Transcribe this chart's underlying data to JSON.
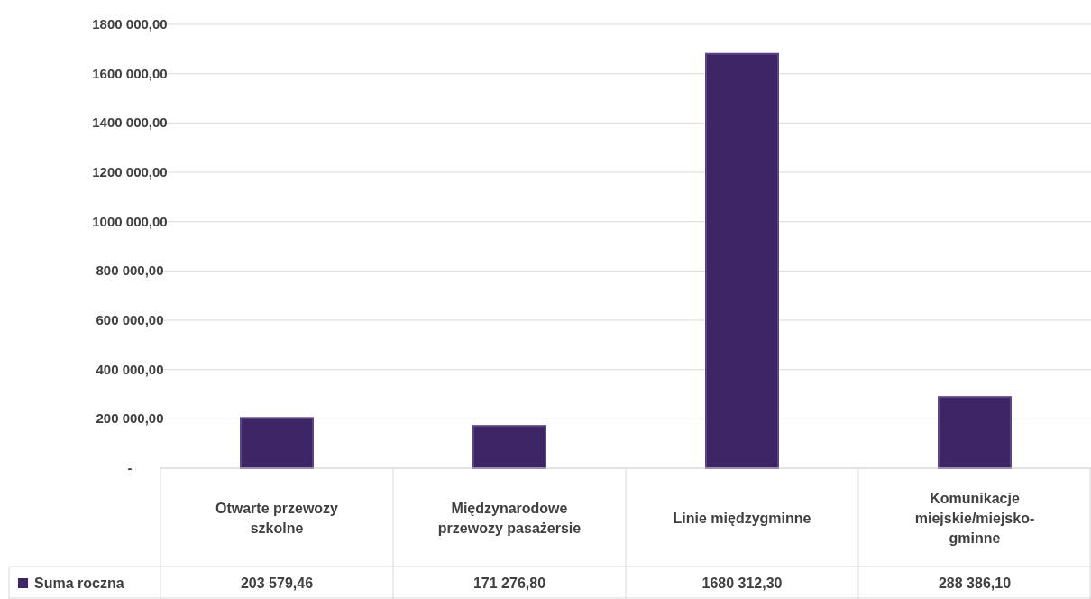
{
  "chart_data": {
    "type": "bar",
    "categories": [
      "Otwarte przewozy szkolne",
      "Międzynarodowe przewozy pasażersie",
      "Linie międzygminne",
      "Komunikacje miejskie/miejsko-gminne"
    ],
    "series": [
      {
        "name": "Suma roczna",
        "color": "#3d2566",
        "values": [
          203579.46,
          171276.8,
          1680312.3,
          288386.1
        ],
        "value_labels": [
          "203 579,46",
          "171 276,80",
          "1680 312,30",
          "288 386,10"
        ]
      }
    ],
    "ylim": [
      0,
      1800000
    ],
    "yticks": [
      {
        "value": 0,
        "label": "-"
      },
      {
        "value": 200000,
        "label": "200 000,00"
      },
      {
        "value": 400000,
        "label": "400 000,00"
      },
      {
        "value": 600000,
        "label": "600 000,00"
      },
      {
        "value": 800000,
        "label": "800 000,00"
      },
      {
        "value": 1000000,
        "label": "1000 000,00"
      },
      {
        "value": 1200000,
        "label": "1200 000,00"
      },
      {
        "value": 1400000,
        "label": "1400 000,00"
      },
      {
        "value": 1600000,
        "label": "1600 000,00"
      },
      {
        "value": 1800000,
        "label": "1800 000,00"
      }
    ],
    "grid": "y",
    "legend": "bottom"
  }
}
